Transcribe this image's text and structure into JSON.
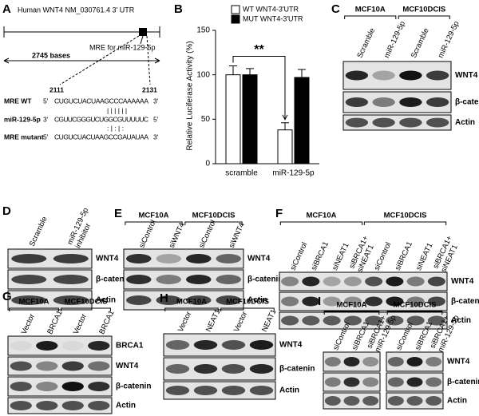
{
  "chart_data": {
    "type": "bar",
    "panel_letter": "B",
    "ylabel": "Relative Luciferase Activity (%)",
    "categories": [
      "scramble",
      "miR-129-5p"
    ],
    "series": [
      {
        "name": "WT WNT4-3'UTR",
        "color": "#ffffff",
        "values": [
          100,
          38
        ],
        "errors": [
          10,
          8
        ]
      },
      {
        "name": "MUT WNT4-3'UTR",
        "color": "#000000",
        "values": [
          100,
          97
        ],
        "errors": [
          7,
          9
        ]
      }
    ],
    "ylim": [
      0,
      150
    ],
    "yticks": [
      0,
      50,
      100,
      150
    ],
    "annotation": "**"
  },
  "panels": {
    "A": {
      "letter": "A",
      "title": "Human WNT4 NM_030761.4 3' UTR",
      "mre": "MRE for miR-129-5p",
      "length": "2745 bases",
      "start": "2111",
      "end": "2131",
      "rows": [
        {
          "name": "MRE WT",
          "left": "5'",
          "seq": "CUGUCUACUAAGCCCAAAAAA",
          "right": "3'"
        },
        {
          "name": "miR-129-5p",
          "left": "3'",
          "seq": "CGUUCGGGUCUGGCGUUUUUC",
          "right": "5'"
        },
        {
          "name": "MRE mutant",
          "left": "5'",
          "seq": "CUGUCUACUAAGCCGAUAUAA",
          "right": "3'"
        }
      ],
      "match_wt": "| | | | | |",
      "match_mut": ": | : | :"
    },
    "C": {
      "letter": "C",
      "groups": [
        {
          "name": "MCF10A",
          "lanes": [
            [
              "Scramble"
            ],
            [
              "miR-129-5p"
            ]
          ]
        },
        {
          "name": "MCF10DCIS",
          "lanes": [
            [
              "Scramble"
            ],
            [
              "miR-129-5p"
            ]
          ]
        }
      ],
      "rows": [
        "WNT4",
        "β-catenin",
        "Actin"
      ]
    },
    "D": {
      "letter": "D",
      "groups": [
        {
          "lanes": [
            [
              "Scramble"
            ],
            [
              "miR-129-5p",
              "inhibitor"
            ]
          ]
        }
      ],
      "rows": [
        "WNT4",
        "β-catenin",
        "Actin"
      ]
    },
    "E": {
      "letter": "E",
      "groups": [
        {
          "name": "MCF10A",
          "lanes": [
            [
              "siControl"
            ],
            [
              "siWNT4"
            ]
          ]
        },
        {
          "name": "MCF10DCIS",
          "lanes": [
            [
              "siControl"
            ],
            [
              "siWNT4"
            ]
          ]
        }
      ],
      "rows": [
        "WNT4",
        "β-catenin",
        "Actin"
      ]
    },
    "F": {
      "letter": "F",
      "groups": [
        {
          "name": "MCF10A",
          "lanes": [
            [
              "siControl"
            ],
            [
              "siBRCA1"
            ],
            [
              "siNEAT1"
            ],
            [
              "siBRCA1+",
              "siNEAT1"
            ]
          ]
        },
        {
          "name": "MCF10DCIS",
          "lanes": [
            [
              "siControl"
            ],
            [
              "siBRCA1"
            ],
            [
              "siNEAT1"
            ],
            [
              "siBRCA1+",
              "siNEAT1"
            ]
          ]
        }
      ],
      "rows": [
        "WNT4",
        "β-catenin",
        "Actin"
      ]
    },
    "G": {
      "letter": "G",
      "groups": [
        {
          "name": "MCF10A",
          "lanes": [
            [
              "Vector"
            ],
            [
              "BRCA1"
            ]
          ]
        },
        {
          "name": "MCF10DCIS",
          "lanes": [
            [
              "Vector"
            ],
            [
              "BRCA1"
            ]
          ]
        }
      ],
      "rows": [
        "BRCA1",
        "WNT4",
        "β-catenin",
        "Actin"
      ]
    },
    "H": {
      "letter": "H",
      "groups": [
        {
          "name": "MCF10A",
          "lanes": [
            [
              "Vector"
            ],
            [
              "NEAT1"
            ]
          ]
        },
        {
          "name": "MCF10DCIS",
          "lanes": [
            [
              "Vector"
            ],
            [
              "NEAT1"
            ]
          ]
        }
      ],
      "rows": [
        "WNT4",
        "β-catenin",
        "Actin"
      ]
    },
    "I": {
      "letter": "I",
      "groups": [
        {
          "name": "MCF10A",
          "lanes": [
            [
              "siControl"
            ],
            [
              "siBRCA1"
            ],
            [
              "siBRCA1+",
              "miR-129-5p"
            ]
          ]
        },
        {
          "name": "MCF10DCIS",
          "lanes": [
            [
              "siControl"
            ],
            [
              "siBRCA1"
            ],
            [
              "siBRCA1+",
              "miR-129-5p"
            ]
          ]
        }
      ],
      "rows": [
        "WNT4",
        "β-catenin",
        "Actin"
      ]
    }
  }
}
